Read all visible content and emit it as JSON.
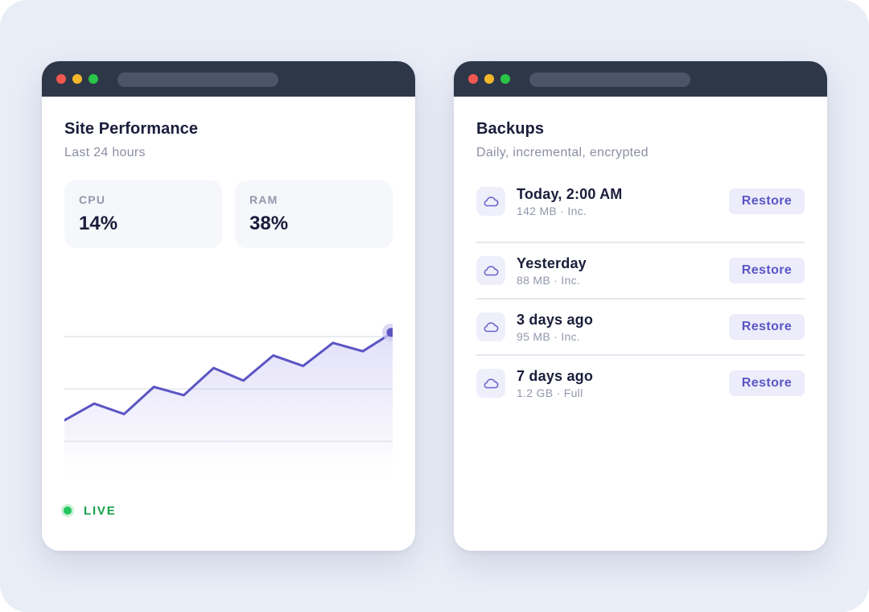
{
  "colors": {
    "background": "#e9edf6",
    "titlebar": "#2d3748",
    "accent": "#5b55c4",
    "live": "#22c55e",
    "dot_red": "#f0584f",
    "dot_yellow": "#f5b72a",
    "dot_green": "#29c548"
  },
  "performance_window": {
    "title": "Site Performance",
    "subtitle": "Last 24 hours",
    "stats": [
      {
        "label": "CPU",
        "value": "14%"
      },
      {
        "label": "RAM",
        "value": "38%"
      }
    ],
    "status_label": "LIVE"
  },
  "chart_data": {
    "type": "area",
    "title": "",
    "xlabel": "",
    "ylabel": "",
    "grid": true,
    "ylim": [
      0,
      100
    ],
    "series": [
      {
        "values": [
          30,
          38,
          33,
          46,
          42,
          55,
          49,
          61,
          56,
          67,
          63,
          72
        ]
      }
    ]
  },
  "backups_window": {
    "title": "Backups",
    "subtitle": "Daily, incremental, encrypted",
    "items": [
      {
        "title": "Today, 2:00 AM",
        "meta": "142 MB · Inc.",
        "action": "Restore",
        "icon": "cloud-icon"
      },
      {
        "title": "Yesterday",
        "meta": "88 MB · Inc.",
        "action": "Restore",
        "icon": "cloud-icon"
      },
      {
        "title": "3 days ago",
        "meta": "95 MB · Inc.",
        "action": "Restore",
        "icon": "cloud-icon"
      },
      {
        "title": "7 days ago",
        "meta": "1.2 GB · Full",
        "action": "Restore",
        "icon": "cloud-icon"
      }
    ]
  }
}
